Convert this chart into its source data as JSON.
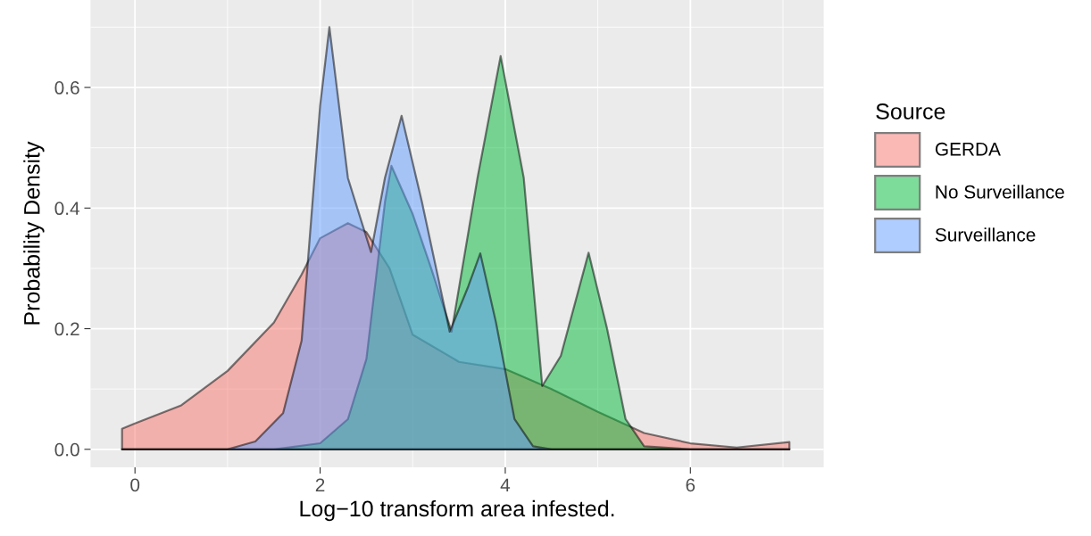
{
  "chart_data": {
    "type": "area",
    "xlabel": "Log−10 transform area infested.",
    "ylabel": "Probability Density",
    "legend_title": "Source",
    "legend": "right",
    "grid": true,
    "xlim": [
      -0.48,
      7.44
    ],
    "ylim": [
      -0.03,
      0.745
    ],
    "xticks": [
      0,
      2,
      4,
      6
    ],
    "yticks": [
      {
        "value": 0,
        "label": "0.0"
      },
      {
        "value": 0.2,
        "label": "0.2"
      },
      {
        "value": 0.4,
        "label": "0.4"
      },
      {
        "value": 0.6,
        "label": "0.6"
      }
    ],
    "series": [
      {
        "name": "GERDA",
        "color": "#f8766d",
        "x": [
          -0.14,
          0,
          0.5,
          1,
          1.5,
          1.8,
          2,
          2.3,
          2.5,
          2.75,
          3,
          3.5,
          4,
          4.5,
          5,
          5.5,
          6,
          6.5,
          7.07
        ],
        "values": [
          0.034,
          0.043,
          0.073,
          0.13,
          0.21,
          0.29,
          0.35,
          0.375,
          0.36,
          0.3,
          0.19,
          0.145,
          0.133,
          0.1,
          0.062,
          0.027,
          0.01,
          0.003,
          0.012
        ]
      },
      {
        "name": "No Surveillance",
        "color": "#00ba38",
        "x": [
          -0.14,
          1.5,
          2,
          2.3,
          2.5,
          2.7,
          2.77,
          3,
          3.2,
          3.42,
          3.7,
          3.95,
          4.2,
          4.4,
          4.6,
          4.9,
          5.1,
          5.3,
          5.5,
          6,
          7.07
        ],
        "values": [
          0,
          0,
          0.01,
          0.05,
          0.15,
          0.41,
          0.47,
          0.39,
          0.3,
          0.195,
          0.45,
          0.652,
          0.45,
          0.105,
          0.155,
          0.326,
          0.2,
          0.05,
          0.005,
          0,
          0
        ]
      },
      {
        "name": "Surveillance",
        "color": "#619cff",
        "x": [
          -0.14,
          1,
          1.3,
          1.6,
          1.8,
          2,
          2.1,
          2.3,
          2.55,
          2.7,
          2.88,
          3.1,
          3.4,
          3.6,
          3.73,
          3.9,
          4.1,
          4.3,
          4.5,
          7.07
        ],
        "values": [
          0,
          0,
          0.013,
          0.06,
          0.18,
          0.57,
          0.7,
          0.45,
          0.327,
          0.45,
          0.553,
          0.41,
          0.195,
          0.27,
          0.325,
          0.21,
          0.05,
          0.005,
          0,
          0
        ]
      }
    ]
  }
}
